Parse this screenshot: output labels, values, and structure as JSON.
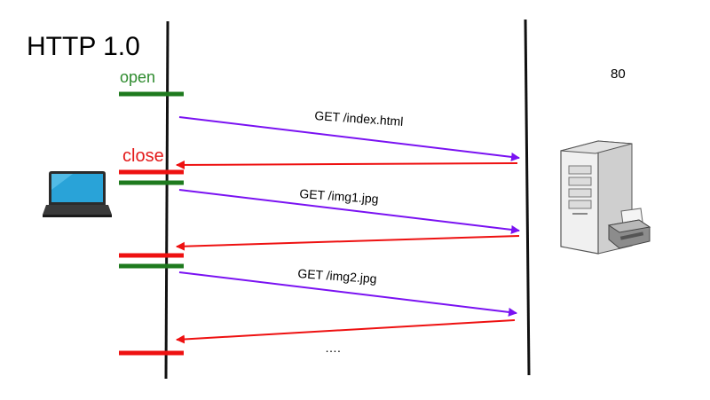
{
  "title": "HTTP 1.0",
  "port": "80",
  "labels": {
    "open": "open",
    "close": "close",
    "more": "…."
  },
  "requests": [
    "GET /index.html",
    "GET /img1.jpg",
    "GET /img2.jpg"
  ],
  "colors": {
    "open": "#1e7a1e",
    "close": "#ee1111",
    "request": "#7a12f2",
    "response": "#ee1111",
    "lifeline": "#111111"
  },
  "icons": {
    "client": "laptop-icon",
    "server": "server-tower-icon",
    "printer": "printer-icon"
  }
}
